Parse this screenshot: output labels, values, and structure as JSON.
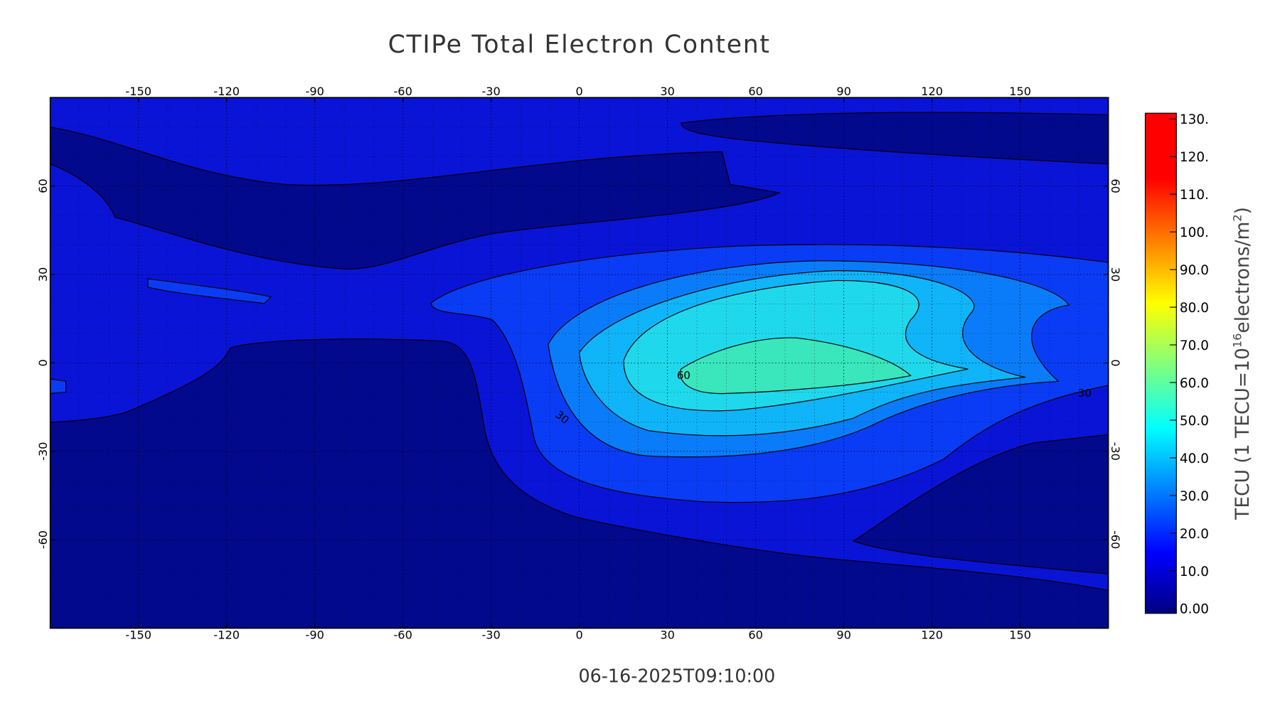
{
  "map": {
    "title": "CTIPe Total Electron Content",
    "timestamp": "06-16-2025T09:10:00",
    "xlim": [
      -180,
      180
    ],
    "ylim": [
      -90,
      90
    ],
    "xticks": [
      -150,
      -120,
      -90,
      -60,
      -30,
      0,
      30,
      60,
      90,
      120,
      150
    ],
    "yticks": [
      -60,
      -30,
      0,
      30,
      60
    ],
    "colorbar": {
      "label_parts": [
        "TECU (1 TECU=10",
        "16",
        "electrons/m",
        "2",
        ")"
      ],
      "lim": [
        0,
        130
      ],
      "ticks": [
        {
          "value": 0,
          "label": "0.00"
        },
        {
          "value": 10,
          "label": "10.0"
        },
        {
          "value": 20,
          "label": "20.0"
        },
        {
          "value": 30,
          "label": "30.0"
        },
        {
          "value": 40,
          "label": "40.0"
        },
        {
          "value": 50,
          "label": "50.0"
        },
        {
          "value": 60,
          "label": "60.0"
        },
        {
          "value": 70,
          "label": "70.0"
        },
        {
          "value": 80,
          "label": "80.0"
        },
        {
          "value": 90,
          "label": "90.0"
        },
        {
          "value": 100,
          "label": "100."
        },
        {
          "value": 110,
          "label": "110."
        },
        {
          "value": 120,
          "label": "120."
        },
        {
          "value": 130,
          "label": "130."
        }
      ]
    },
    "contour_labels": [
      60,
      30,
      30
    ]
  }
}
